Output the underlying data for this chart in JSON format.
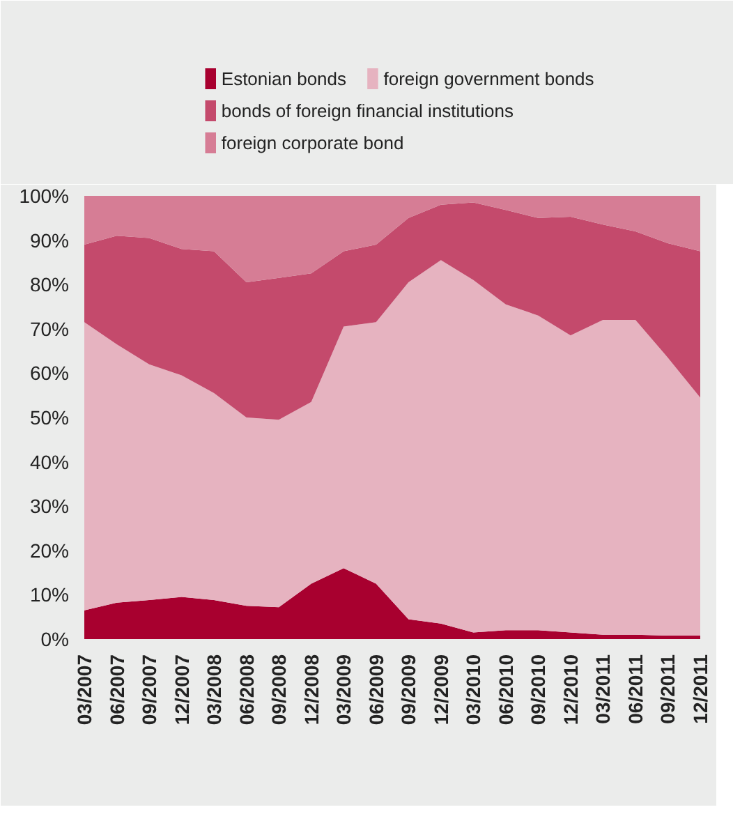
{
  "chart_data": {
    "type": "area",
    "stacked": true,
    "categories": [
      "03/2007",
      "06/2007",
      "09/2007",
      "12/2007",
      "03/2008",
      "06/2008",
      "09/2008",
      "12/2008",
      "03/2009",
      "06/2009",
      "09/2009",
      "12/2009",
      "03/2010",
      "06/2010",
      "09/2010",
      "12/2010",
      "03/2011",
      "06/2011",
      "09/2011",
      "12/2011"
    ],
    "series": [
      {
        "name": "Estonian bonds",
        "color": "#a8002f",
        "values": [
          6.5,
          8.2,
          8.8,
          9.5,
          8.8,
          7.5,
          7.2,
          12.5,
          16,
          12.5,
          4.5,
          3.5,
          1.5,
          2,
          2,
          1.5,
          1,
          1,
          0.8,
          0.8
        ]
      },
      {
        "name": "foreign government bonds",
        "color": "#e6b3c0",
        "values": [
          65,
          58.3,
          53.2,
          50,
          46.7,
          42.5,
          42.3,
          41,
          54.5,
          59,
          76,
          82,
          79.5,
          73.5,
          71,
          67,
          71,
          71,
          62.7,
          53.7
        ]
      },
      {
        "name": "bonds of foreign financial institutions",
        "color": "#c44a6c",
        "values": [
          17.5,
          24.5,
          28.5,
          28.5,
          32,
          30.5,
          32,
          29,
          17,
          17.5,
          14.5,
          12.5,
          17.5,
          21.3,
          22,
          26.8,
          21.5,
          20,
          25.8,
          33
        ]
      },
      {
        "name": "foreign corporate bond",
        "color": "#d67d95",
        "values": [
          11,
          9,
          9.5,
          12,
          12.5,
          19.5,
          18.5,
          17.5,
          12.5,
          11,
          5,
          2,
          1.5,
          3.2,
          5,
          4.7,
          6.5,
          8,
          10.7,
          12.5
        ]
      }
    ],
    "ylim": [
      0,
      100
    ],
    "yticks": [
      {
        "value": 0,
        "label": "0%"
      },
      {
        "value": 10,
        "label": "10%"
      },
      {
        "value": 20,
        "label": "20%"
      },
      {
        "value": 30,
        "label": "30%"
      },
      {
        "value": 40,
        "label": "40%"
      },
      {
        "value": 50,
        "label": "50%"
      },
      {
        "value": 60,
        "label": "60%"
      },
      {
        "value": 70,
        "label": "70%"
      },
      {
        "value": 80,
        "label": "80%"
      },
      {
        "value": 90,
        "label": "90%"
      },
      {
        "value": 100,
        "label": "100%"
      }
    ],
    "legend": "top"
  }
}
